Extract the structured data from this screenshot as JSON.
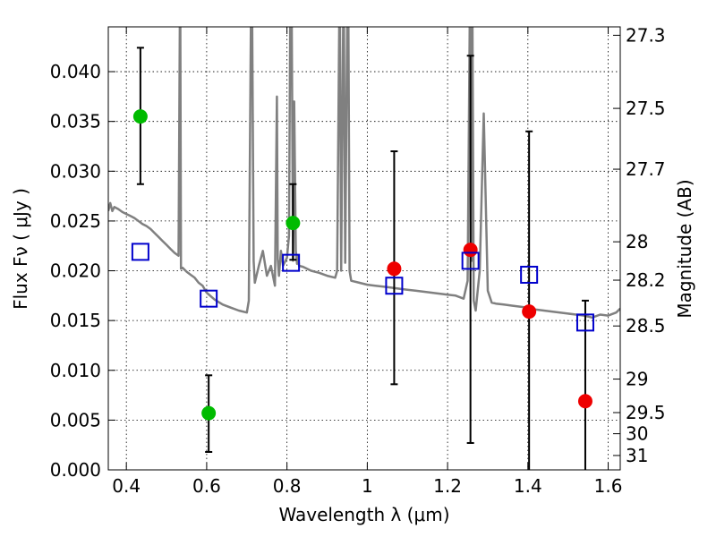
{
  "chart_data": {
    "type": "scatter",
    "xlabel": "Wavelength  λ (μm)",
    "ylabel": "Flux  Fν  ( μJy )",
    "y2label": "Magnitude (AB)",
    "xlim": [
      0.355,
      1.63
    ],
    "ylim": [
      0.0,
      0.0445
    ],
    "grid": true,
    "x_ticks": [
      0.4,
      0.6,
      0.8,
      1.0,
      1.2,
      1.4,
      1.6
    ],
    "x_tick_labels": [
      "0.4",
      "0.6",
      "0.8",
      "1",
      "1.2",
      "1.4",
      "1.6"
    ],
    "y_ticks": [
      0.0,
      0.005,
      0.01,
      0.015,
      0.02,
      0.025,
      0.03,
      0.035,
      0.04
    ],
    "y_tick_labels": [
      "0.000",
      "0.005",
      "0.010",
      "0.015",
      "0.020",
      "0.025",
      "0.030",
      "0.035",
      "0.040"
    ],
    "mag_ticks": [
      27.3,
      27.5,
      27.7,
      28,
      28.2,
      28.5,
      29,
      29.5,
      30,
      31
    ],
    "mag_tick_labels": [
      "27.3",
      "27.5",
      "27.7",
      "28",
      "28.2",
      "28.5",
      "29",
      "29.5",
      "30",
      "31"
    ],
    "colors": {
      "model": "#808080",
      "green_points": "#00bb00",
      "red_points": "#ee0000",
      "model_photometry": "#0000cc",
      "error_bars": "#000000"
    },
    "series": [
      {
        "kind": "line",
        "x": [
          0.355,
          0.36,
          0.365,
          0.37,
          0.38,
          0.39,
          0.4,
          0.41,
          0.42,
          0.43,
          0.44,
          0.45,
          0.46,
          0.47,
          0.48,
          0.49,
          0.5,
          0.51,
          0.52,
          0.53,
          0.533,
          0.5345,
          0.536,
          0.54,
          0.55,
          0.56,
          0.57,
          0.58,
          0.59,
          0.6,
          0.62,
          0.64,
          0.66,
          0.68,
          0.7,
          0.705,
          0.71,
          0.7135,
          0.717,
          0.72,
          0.73,
          0.74,
          0.75,
          0.76,
          0.77,
          0.775,
          0.777,
          0.78,
          0.785,
          0.79,
          0.8,
          0.805,
          0.808,
          0.812,
          0.815,
          0.818,
          0.822,
          0.825,
          0.828,
          0.83,
          0.84,
          0.86,
          0.88,
          0.9,
          0.92,
          0.925,
          0.93,
          0.932,
          0.935,
          0.94,
          0.942,
          0.945,
          0.95,
          0.953,
          0.956,
          0.96,
          0.98,
          1.0,
          1.02,
          1.04,
          1.06,
          1.08,
          1.1,
          1.12,
          1.14,
          1.16,
          1.18,
          1.2,
          1.22,
          1.24,
          1.25,
          1.255,
          1.258,
          1.26,
          1.262,
          1.265,
          1.27,
          1.28,
          1.29,
          1.3,
          1.31,
          1.32,
          1.34,
          1.36,
          1.38,
          1.4,
          1.42,
          1.44,
          1.46,
          1.48,
          1.5,
          1.52,
          1.54,
          1.56,
          1.58,
          1.6,
          1.62,
          1.63
        ],
        "y": [
          0.026,
          0.0268,
          0.026,
          0.0264,
          0.0262,
          0.0259,
          0.0257,
          0.0255,
          0.0253,
          0.025,
          0.0247,
          0.0245,
          0.0242,
          0.0238,
          0.0234,
          0.023,
          0.0226,
          0.0222,
          0.0218,
          0.0215,
          0.0445,
          0.0445,
          0.0202,
          0.0203,
          0.0199,
          0.0196,
          0.0193,
          0.0188,
          0.0185,
          0.0178,
          0.0171,
          0.0166,
          0.0163,
          0.016,
          0.0158,
          0.017,
          0.0445,
          0.0445,
          0.021,
          0.0188,
          0.0205,
          0.022,
          0.0195,
          0.0205,
          0.0185,
          0.0375,
          0.0212,
          0.0195,
          0.022,
          0.0205,
          0.0213,
          0.0235,
          0.0445,
          0.0445,
          0.021,
          0.037,
          0.022,
          0.0207,
          0.0215,
          0.0205,
          0.0204,
          0.02,
          0.0198,
          0.0195,
          0.0193,
          0.02,
          0.0445,
          0.0445,
          0.02,
          0.0445,
          0.0445,
          0.0208,
          0.0445,
          0.0445,
          0.02,
          0.019,
          0.0188,
          0.0186,
          0.0185,
          0.0184,
          0.0183,
          0.0182,
          0.0181,
          0.018,
          0.0179,
          0.0178,
          0.0177,
          0.0176,
          0.0175,
          0.0172,
          0.019,
          0.0445,
          0.0445,
          0.021,
          0.0445,
          0.017,
          0.016,
          0.02,
          0.0358,
          0.018,
          0.0168,
          0.0167,
          0.0166,
          0.0165,
          0.0164,
          0.0163,
          0.0161,
          0.016,
          0.0159,
          0.0158,
          0.0157,
          0.0156,
          0.0155,
          0.0153,
          0.0156,
          0.0155,
          0.0158,
          0.0162
        ]
      },
      {
        "kind": "points",
        "x": [
          0.435,
          0.605,
          0.815
        ],
        "y": [
          0.0355,
          0.0057,
          0.0248
        ],
        "yerr_low": [
          0.0287,
          0.0018,
          0.0211
        ],
        "yerr_high": [
          0.0424,
          0.0095,
          0.0287
        ]
      },
      {
        "kind": "points",
        "x": [
          1.067,
          1.257,
          1.403,
          1.543
        ],
        "y": [
          0.0202,
          0.0221,
          0.0159,
          0.0069
        ],
        "yerr_low": [
          0.0086,
          0.0027,
          0.0,
          0.0
        ],
        "yerr_high": [
          0.032,
          0.0416,
          0.034,
          0.017
        ]
      },
      {
        "kind": "squares",
        "x": [
          0.435,
          0.605,
          0.81,
          1.067,
          1.257,
          1.403,
          1.543
        ],
        "y": [
          0.0219,
          0.0172,
          0.0208,
          0.0185,
          0.021,
          0.0196,
          0.0148
        ]
      }
    ]
  }
}
